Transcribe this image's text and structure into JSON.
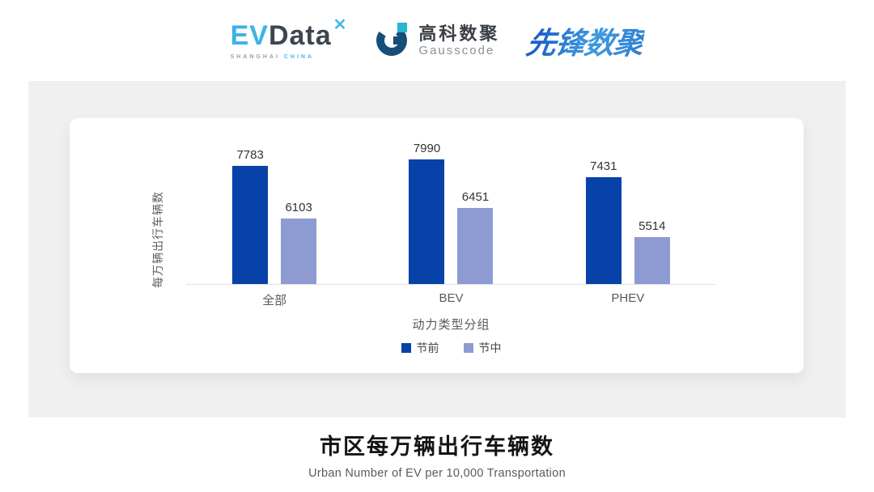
{
  "header": {
    "evdata": {
      "ev": "EV",
      "data": "Data",
      "mark": "✕",
      "caption_left": "SHANGHAI",
      "caption_right": "CHINA"
    },
    "gausscode": {
      "cn": "高科数聚",
      "en": "Gausscode"
    },
    "pioneer": {
      "text": "先锋数聚"
    }
  },
  "chart_data": {
    "type": "bar",
    "title": "",
    "categories": [
      "全部",
      "BEV",
      "PHEV"
    ],
    "series": [
      {
        "name": "节前",
        "color": "#0742a8",
        "values": [
          7783,
          7990,
          7431
        ]
      },
      {
        "name": "节中",
        "color": "#8e9bd3",
        "values": [
          6103,
          6451,
          5514
        ]
      }
    ],
    "xlabel": "动力类型分组",
    "ylabel": "每万辆出行车辆数",
    "ylim": [
      4000,
      8200
    ],
    "grid": false,
    "legend_position": "bottom",
    "value_labels": true
  },
  "footer": {
    "title": "市区每万辆出行车辆数",
    "subtitle": "Urban Number of EV per 10,000 Transportation"
  }
}
